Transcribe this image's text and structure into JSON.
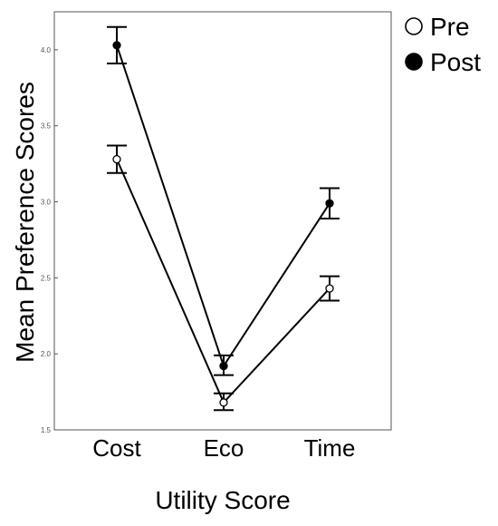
{
  "chart_data": {
    "type": "line",
    "categories": [
      "Cost",
      "Eco",
      "Time"
    ],
    "xlabel": "Utility Score",
    "ylabel": "Mean Preference Scores",
    "ylim": [
      1.5,
      4.25
    ],
    "yticks": [
      "1.5",
      "2.0",
      "2.5",
      "3.0",
      "3.5",
      "4.0"
    ],
    "grid": false,
    "legend_position": "outside-top-right",
    "series": [
      {
        "name": "Pre",
        "marker": "open-circle",
        "values": [
          3.28,
          1.68,
          2.43
        ],
        "error_low": [
          3.19,
          1.63,
          2.35
        ],
        "error_high": [
          3.37,
          1.74,
          2.51
        ]
      },
      {
        "name": "Post",
        "marker": "filled-circle",
        "values": [
          4.03,
          1.92,
          2.99
        ],
        "error_low": [
          3.91,
          1.86,
          2.89
        ],
        "error_high": [
          4.15,
          1.99,
          3.09
        ]
      }
    ],
    "colors": {
      "line": "#000000",
      "frame": "#555555",
      "open_marker_fill": "#ffffff",
      "filled_marker_fill": "#000000"
    }
  }
}
